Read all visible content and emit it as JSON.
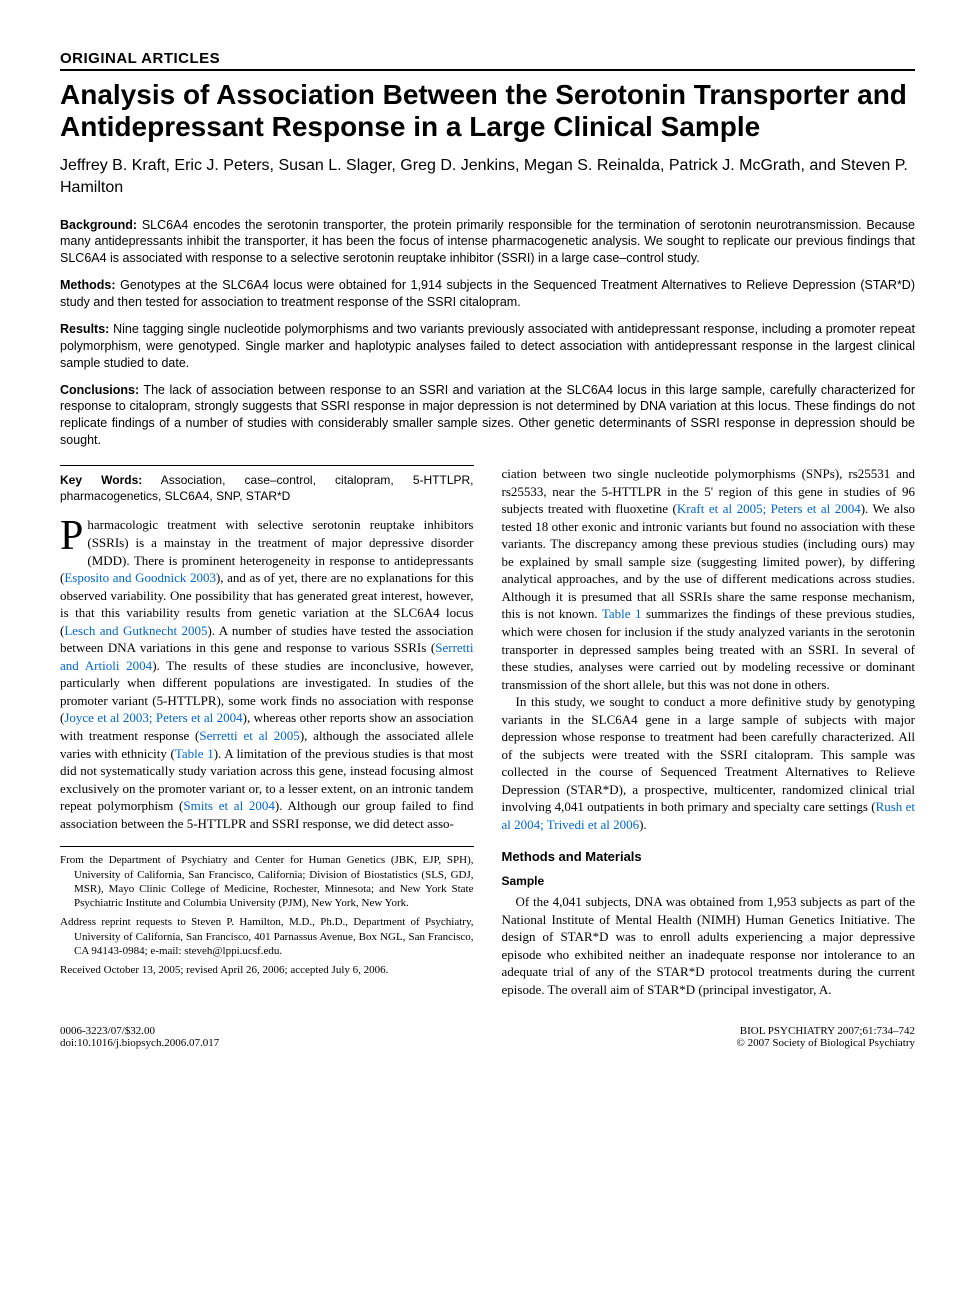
{
  "section_type": "Original Articles",
  "title": "Analysis of Association Between the Serotonin Transporter and Antidepressant Response in a Large Clinical Sample",
  "authors": "Jeffrey B. Kraft, Eric J. Peters, Susan L. Slager, Greg D. Jenkins, Megan S. Reinalda, Patrick J. McGrath, and Steven P. Hamilton",
  "abstract": {
    "background": {
      "label": "Background:",
      "text": "SLC6A4 encodes the serotonin transporter, the protein primarily responsible for the termination of serotonin neurotransmission. Because many antidepressants inhibit the transporter, it has been the focus of intense pharmacogenetic analysis. We sought to replicate our previous findings that SLC6A4 is associated with response to a selective serotonin reuptake inhibitor (SSRI) in a large case–control study."
    },
    "methods": {
      "label": "Methods:",
      "text": "Genotypes at the SLC6A4 locus were obtained for 1,914 subjects in the Sequenced Treatment Alternatives to Relieve Depression (STAR*D) study and then tested for association to treatment response of the SSRI citalopram."
    },
    "results": {
      "label": "Results:",
      "text": "Nine tagging single nucleotide polymorphisms and two variants previously associated with antidepressant response, including a promoter repeat polymorphism, were genotyped. Single marker and haplotypic analyses failed to detect association with antidepressant response in the largest clinical sample studied to date."
    },
    "conclusions": {
      "label": "Conclusions:",
      "text": "The lack of association between response to an SSRI and variation at the SLC6A4 locus in this large sample, carefully characterized for response to citalopram, strongly suggests that SSRI response in major depression is not determined by DNA variation at this locus. These findings do not replicate findings of a number of studies with considerably smaller sample sizes. Other genetic determinants of SSRI response in depression should be sought."
    }
  },
  "keywords": {
    "label": "Key Words:",
    "text": "Association, case–control, citalopram, 5-HTTLPR, pharmacogenetics, SLC6A4, SNP, STAR*D"
  },
  "body": {
    "col1_p1_a": "harmacologic treatment with selective serotonin reuptake inhibitors (SSRIs) is a mainstay in the treatment of major depressive disorder (MDD). There is prominent heterogeneity in response to antidepressants (",
    "col1_p1_ref1": "Esposito and Goodnick 2003",
    "col1_p1_b": "), and as of yet, there are no explanations for this observed variability. One possibility that has generated great interest, however, is that this variability results from genetic variation at the SLC6A4 locus (",
    "col1_p1_ref2": "Lesch and Gutknecht 2005",
    "col1_p1_c": "). A number of studies have tested the association between DNA variations in this gene and response to various SSRIs (",
    "col1_p1_ref3": "Serretti and Artioli 2004",
    "col1_p1_d": "). The results of these studies are inconclusive, however, particularly when different populations are investigated. In studies of the promoter variant (5-HTTLPR), some work finds no association with response (",
    "col1_p1_ref4": "Joyce et al 2003; Peters et al 2004",
    "col1_p1_e": "), whereas other reports show an association with treatment response (",
    "col1_p1_ref5": "Serretti et al 2005",
    "col1_p1_f": "), although the associated allele varies with ethnicity (",
    "col1_p1_ref6": "Table 1",
    "col1_p1_g": "). A limitation of the previous studies is that most did not systematically study variation across this gene, instead focusing almost exclusively on the promoter variant or, to a lesser extent, on an intronic tandem repeat polymorphism (",
    "col1_p1_ref7": "Smits et al 2004",
    "col1_p1_h": "). Although our group failed to find association between the 5-HTTLPR and SSRI response, we did detect asso-",
    "col2_p1_a": "ciation between two single nucleotide polymorphisms (SNPs), rs25531 and rs25533, near the 5-HTTLPR in the 5' region of this gene in studies of 96 subjects treated with fluoxetine (",
    "col2_p1_ref1": "Kraft et al 2005; Peters et al 2004",
    "col2_p1_b": "). We also tested 18 other exonic and intronic variants but found no association with these variants. The discrepancy among these previous studies (including ours) may be explained by small sample size (suggesting limited power), by differing analytical approaches, and by the use of different medications across studies. Although it is presumed that all SSRIs share the same response mechanism, this is not known. ",
    "col2_p1_ref2": "Table 1",
    "col2_p1_c": " summarizes the findings of these previous studies, which were chosen for inclusion if the study analyzed variants in the serotonin transporter in depressed samples being treated with an SSRI. In several of these studies, analyses were carried out by modeling recessive or dominant transmission of the short allele, but this was not done in others.",
    "col2_p2_a": "In this study, we sought to conduct a more definitive study by genotyping variants in the SLC6A4 gene in a large sample of subjects with major depression whose response to treatment had been carefully characterized. All of the subjects were treated with the SSRI citalopram. This sample was collected in the course of Sequenced Treatment Alternatives to Relieve Depression (STAR*D), a prospective, multicenter, randomized clinical trial involving 4,041 outpatients in both primary and specialty care settings (",
    "col2_p2_ref1": "Rush et al 2004; Trivedi et al 2006",
    "col2_p2_b": ").",
    "methods_heading": "Methods and Materials",
    "sample_heading": "Sample",
    "col2_p3": "Of the 4,041 subjects, DNA was obtained from 1,953 subjects as part of the National Institute of Mental Health (NIMH) Human Genetics Initiative. The design of STAR*D was to enroll adults experiencing a major depressive episode who exhibited neither an inadequate response nor intolerance to an adequate trial of any of the STAR*D protocol treatments during the current episode. The overall aim of STAR*D (principal investigator, A."
  },
  "affiliations": {
    "from": "From the Department of Psychiatry and Center for Human Genetics (JBK, EJP, SPH), University of California, San Francisco, California; Division of Biostatistics (SLS, GDJ, MSR), Mayo Clinic College of Medicine, Rochester, Minnesota; and New York State Psychiatric Institute and Columbia University (PJM), New York, New York.",
    "reprints": "Address reprint requests to Steven P. Hamilton, M.D., Ph.D., Department of Psychiatry, University of California, San Francisco, 401 Parnassus Avenue, Box NGL, San Francisco, CA 94143-0984; e-mail: steveh@lppi.ucsf.edu.",
    "received": "Received October 13, 2005; revised April 26, 2006; accepted July 6, 2006."
  },
  "footer": {
    "left1": "0006-3223/07/$32.00",
    "left2": "doi:10.1016/j.biopsych.2006.07.017",
    "right1": "BIOL PSYCHIATRY 2007;61:734–742",
    "right2": "© 2007 Society of Biological Psychiatry"
  },
  "style": {
    "link_color": "#0066cc",
    "text_color": "#000000",
    "bg_color": "#ffffff",
    "title_fontsize": 28,
    "body_fontsize": 13,
    "abstract_fontsize": 12.5
  }
}
